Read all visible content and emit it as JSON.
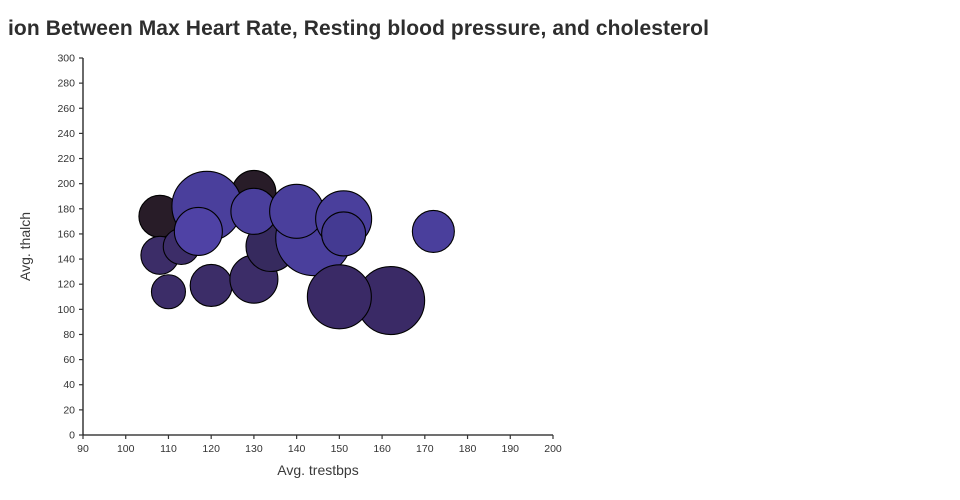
{
  "title": "ion Between Max Heart Rate, Resting blood pressure, and cholesterol",
  "colors": {
    "background": "#ffffff",
    "title_text": "#2e2e2e",
    "axis_line": "#1a1a1a",
    "tick_mark": "#333333",
    "tick_label": "#333333",
    "axis_label": "#3a3a3a",
    "bubble_stroke": "#000000",
    "bubble_black": "#281c28",
    "bubble_dark_purple": "#3c2d68",
    "bubble_blue": "#4a3f9c"
  },
  "chart_data": {
    "type": "scatter",
    "title": "ion Between Max Heart Rate, Resting blood pressure, and cholesterol",
    "xlabel": "Avg. trestbps",
    "ylabel": "Avg. thalch",
    "xlim": [
      90,
      200
    ],
    "ylim": [
      0,
      300
    ],
    "x_ticks": [
      90,
      100,
      110,
      120,
      130,
      140,
      150,
      160,
      170,
      180,
      190,
      200
    ],
    "y_ticks": [
      0,
      20,
      40,
      60,
      80,
      100,
      120,
      140,
      160,
      180,
      200,
      220,
      240,
      260,
      280,
      300
    ],
    "grid": false,
    "legend_position": "none",
    "size_encodes": "cholesterol (bubble area, no legend shown)",
    "points": [
      {
        "x": 108,
        "y": 174,
        "r": 21,
        "color": "#281c28"
      },
      {
        "x": 130,
        "y": 193,
        "r": 22,
        "color": "#281c28"
      },
      {
        "x": 108,
        "y": 143,
        "r": 19,
        "color": "#3c2d68"
      },
      {
        "x": 113,
        "y": 150,
        "r": 18,
        "color": "#3c2d68"
      },
      {
        "x": 119,
        "y": 182,
        "r": 35,
        "color": "#4a3f9c"
      },
      {
        "x": 117,
        "y": 162,
        "r": 24,
        "color": "#4f42a5"
      },
      {
        "x": 110,
        "y": 114,
        "r": 17,
        "color": "#3c2d68"
      },
      {
        "x": 120,
        "y": 119,
        "r": 21,
        "color": "#3c2d68"
      },
      {
        "x": 130,
        "y": 124,
        "r": 24,
        "color": "#3c2d68"
      },
      {
        "x": 134,
        "y": 150,
        "r": 25,
        "color": "#362a5e"
      },
      {
        "x": 144,
        "y": 157,
        "r": 38,
        "color": "#4a3f9c"
      },
      {
        "x": 130,
        "y": 178,
        "r": 23,
        "color": "#4a3f9c"
      },
      {
        "x": 140,
        "y": 178,
        "r": 27,
        "color": "#4a3f9c"
      },
      {
        "x": 151,
        "y": 172,
        "r": 28,
        "color": "#4a3f9c"
      },
      {
        "x": 151,
        "y": 160,
        "r": 22,
        "color": "#443a92"
      },
      {
        "x": 162,
        "y": 107,
        "r": 34,
        "color": "#3a2a66"
      },
      {
        "x": 150,
        "y": 110,
        "r": 32,
        "color": "#3a2a66"
      },
      {
        "x": 172,
        "y": 162,
        "r": 21,
        "color": "#4a3f9c"
      }
    ]
  }
}
